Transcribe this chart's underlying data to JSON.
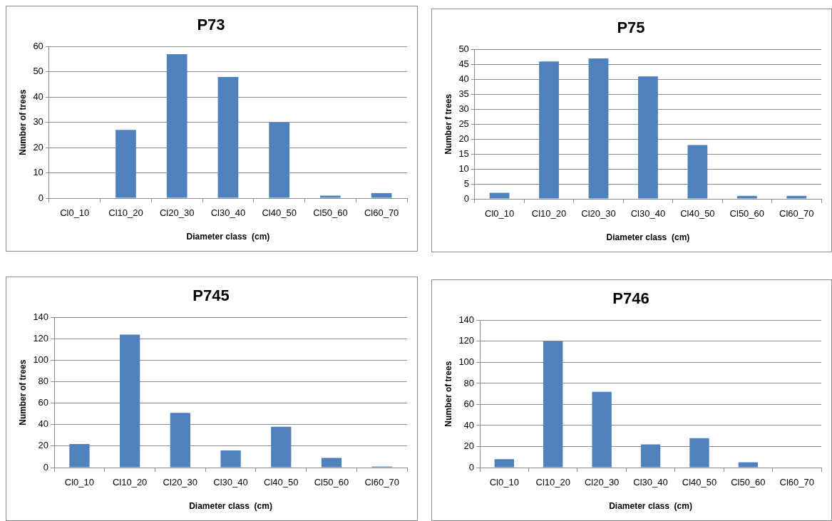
{
  "chart_data": [
    {
      "type": "bar",
      "title": "P73",
      "xlabel": "Diameter class  (cm)",
      "ylabel": "Number of trees",
      "categories": [
        "Cl0_10",
        "Cl10_20",
        "Cl20_30",
        "Cl30_40",
        "Cl40_50",
        "Cl50_60",
        "Cl60_70"
      ],
      "values": [
        0,
        27,
        57,
        48,
        30,
        1,
        2
      ],
      "color": "#4f81bd",
      "ylim": [
        0,
        60
      ],
      "yticks": [
        0,
        10,
        20,
        30,
        40,
        50,
        60
      ],
      "grid": "y",
      "legend": false
    },
    {
      "type": "bar",
      "title": "P75",
      "xlabel": "Diameter class  (cm)",
      "ylabel": "Number f trees",
      "categories": [
        "Cl0_10",
        "Cl10_20",
        "Cl20_30",
        "Cl30_40",
        "Cl40_50",
        "Cl50_60",
        "Cl60_70"
      ],
      "values": [
        2,
        46,
        47,
        41,
        18,
        1,
        1
      ],
      "color": "#4f81bd",
      "ylim": [
        0,
        50
      ],
      "yticks": [
        0,
        5,
        10,
        15,
        20,
        25,
        30,
        35,
        40,
        45,
        50
      ],
      "grid": "y",
      "legend": false
    },
    {
      "type": "bar",
      "title": "P745",
      "xlabel": "Diameter class  (cm)",
      "ylabel": "Number of trees",
      "categories": [
        "Cl0_10",
        "Cl10_20",
        "Cl20_30",
        "Cl30_40",
        "Cl40_50",
        "Cl50_60",
        "Cl60_70"
      ],
      "values": [
        22,
        124,
        51,
        16,
        38,
        9,
        1
      ],
      "color": "#4f81bd",
      "ylim": [
        0,
        140
      ],
      "yticks": [
        0,
        20,
        40,
        60,
        80,
        100,
        120,
        140
      ],
      "grid": "y",
      "legend": false
    },
    {
      "type": "bar",
      "title": "P746",
      "xlabel": "Diameter class  (cm)",
      "ylabel": "Number of trees",
      "categories": [
        "Cl0_10",
        "Cl10_20",
        "Cl20_30",
        "Cl30_40",
        "Cl40_50",
        "Cl50_60",
        "Cl60_70"
      ],
      "values": [
        8,
        120,
        72,
        22,
        28,
        5,
        0
      ],
      "color": "#4f81bd",
      "ylim": [
        0,
        140
      ],
      "yticks": [
        0,
        20,
        40,
        60,
        80,
        100,
        120,
        140
      ],
      "grid": "y",
      "legend": false
    }
  ]
}
